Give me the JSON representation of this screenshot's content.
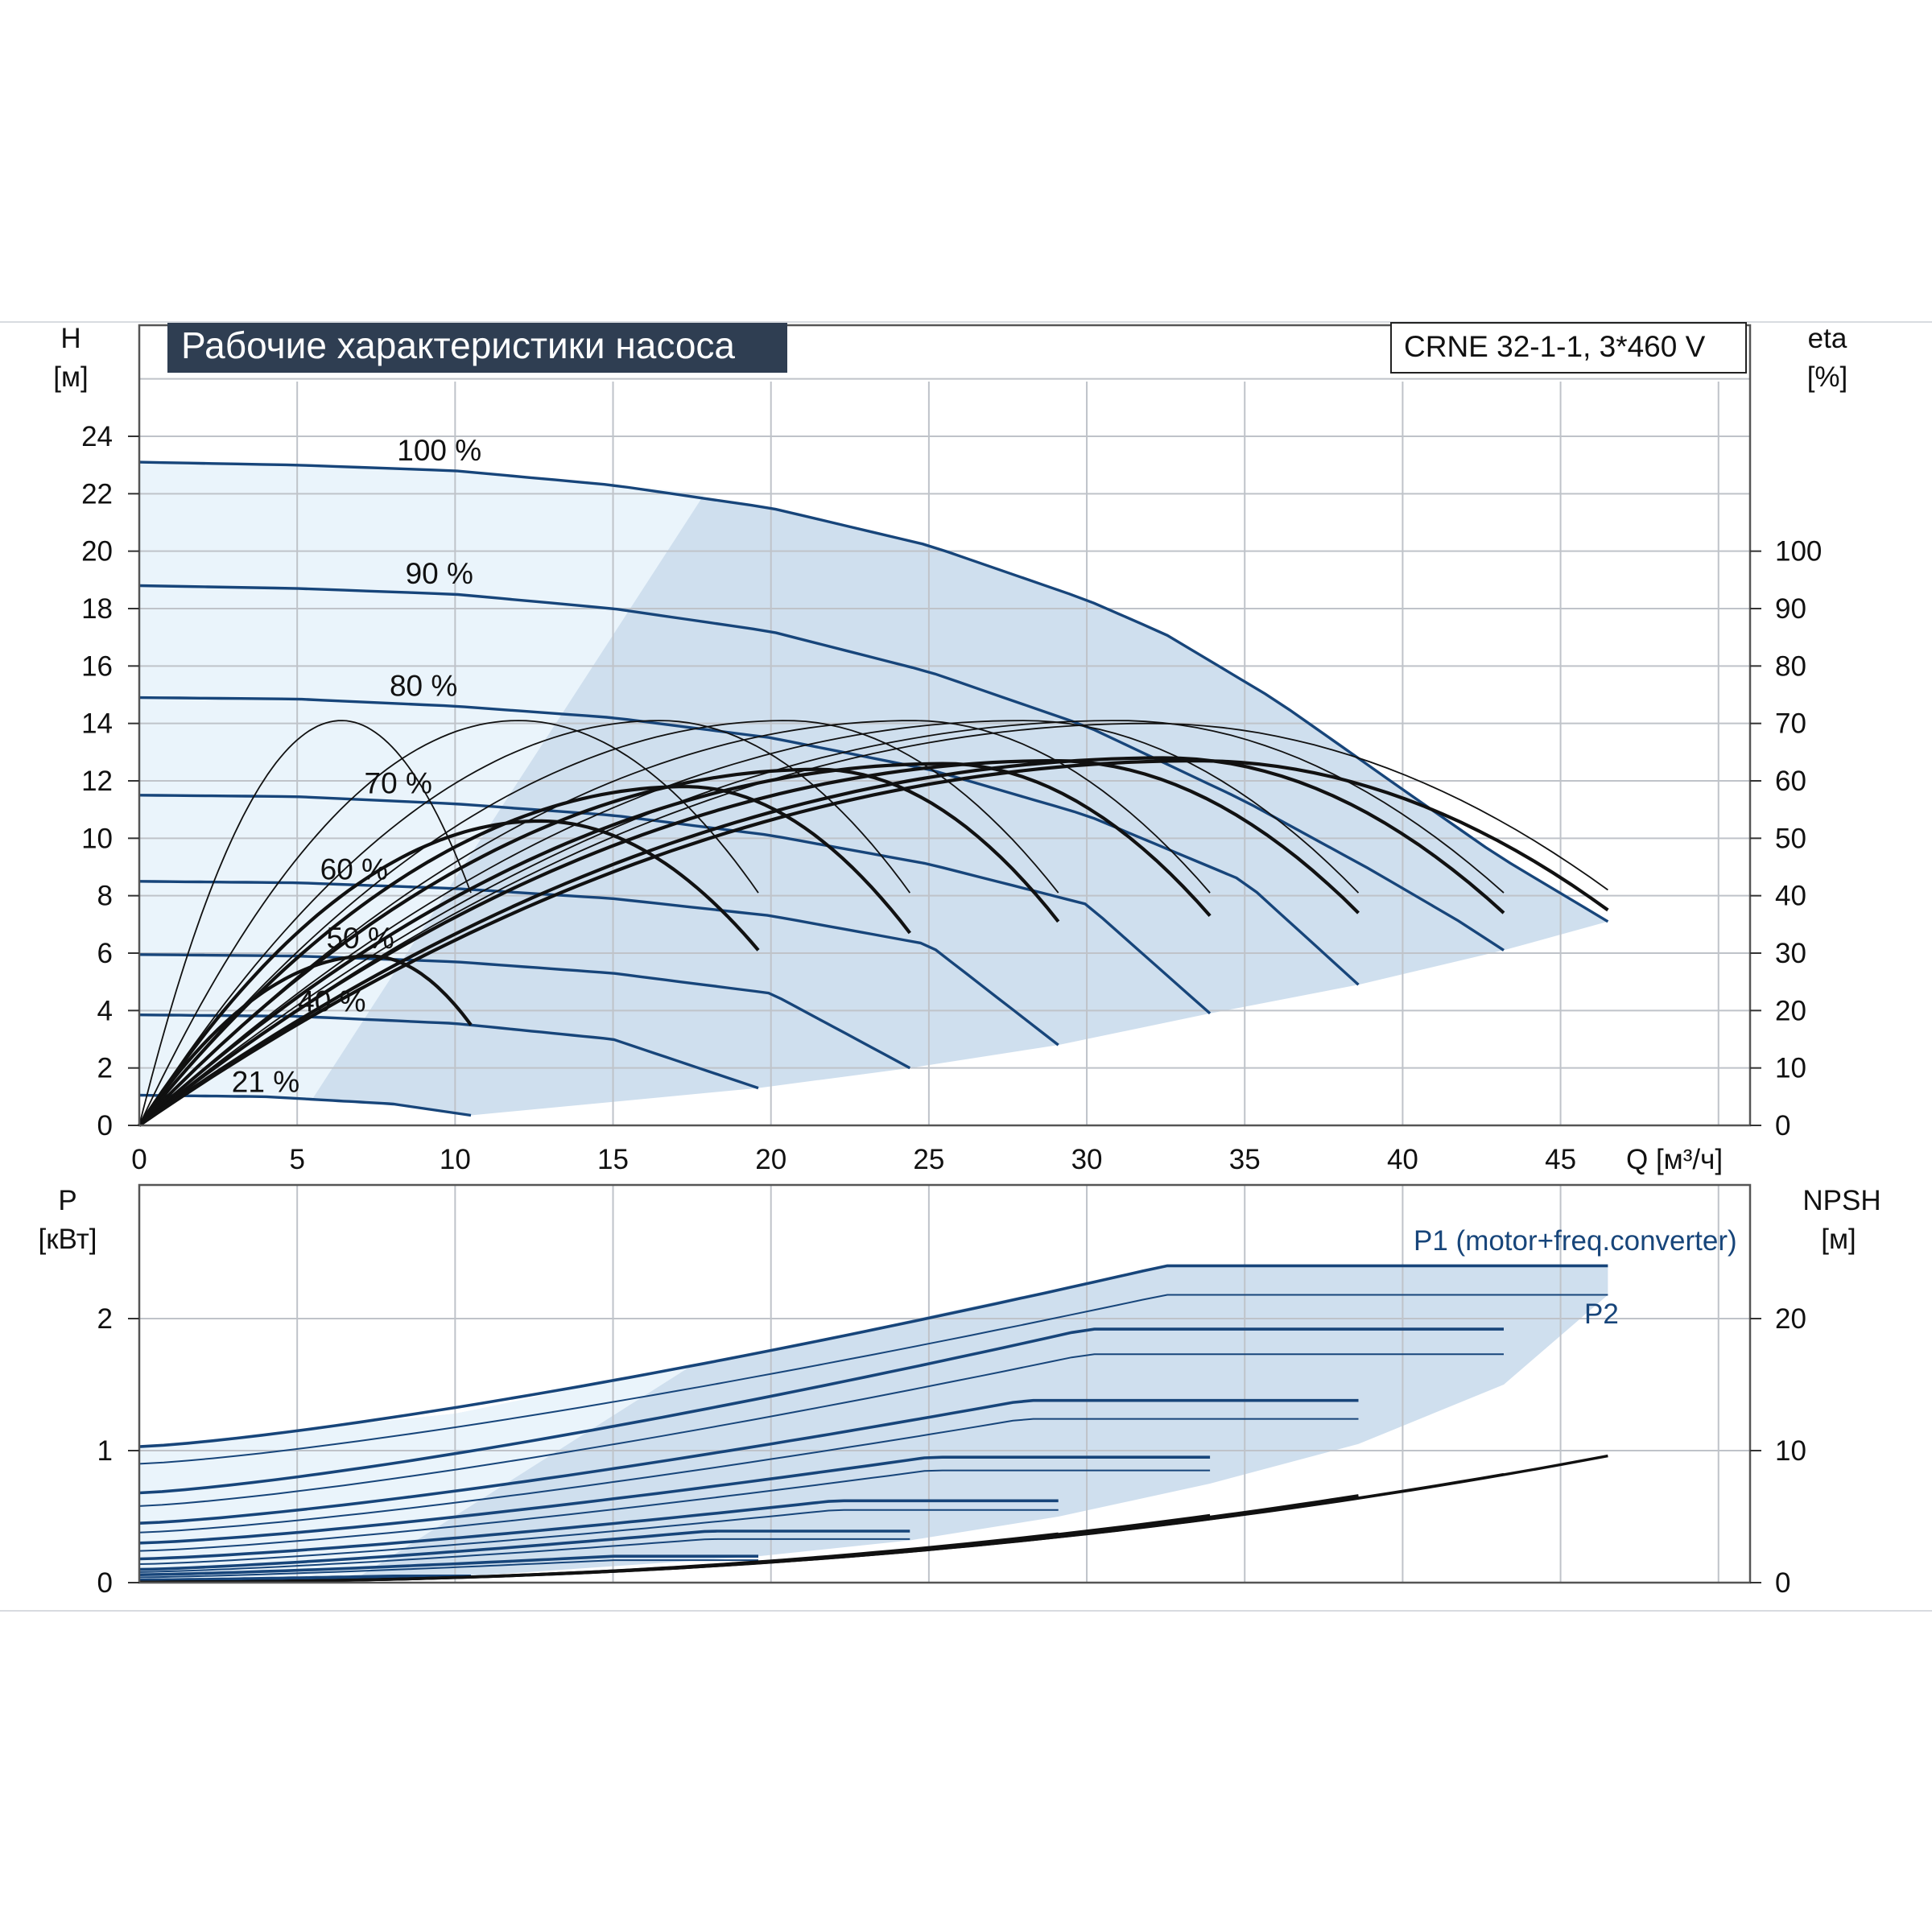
{
  "title": "Рабочие характеристики насоса",
  "model": "CRNE 32-1-1, 3*460 V",
  "colors": {
    "blue": "#17457a",
    "black": "#111111",
    "grid": "#bfc3c9",
    "title_bg": "#2f3e52",
    "band": "#cfdfee",
    "band_light": "#eaf4fb"
  },
  "chart_data": [
    {
      "type": "line",
      "left_axis": {
        "label": "H",
        "unit": "[м]",
        "ticks": [
          "0",
          "2",
          "4",
          "6",
          "8",
          "10",
          "12",
          "14",
          "16",
          "18",
          "20",
          "22",
          "24"
        ],
        "ylim": [
          0,
          24
        ]
      },
      "right_axis": {
        "label": "eta",
        "unit": "[%]",
        "ticks": [
          "0",
          "10",
          "20",
          "30",
          "40",
          "50",
          "60",
          "70",
          "80",
          "90",
          "100"
        ],
        "ylim": [
          0,
          120
        ]
      },
      "x_axis": {
        "label": "Q [м³/ч]",
        "ticks": [
          "0",
          "5",
          "10",
          "15",
          "20",
          "25",
          "30",
          "35",
          "40",
          "45"
        ],
        "xlim": [
          0,
          51
        ]
      },
      "grid": true,
      "qh_series": [
        {
          "name": "100 %",
          "points": [
            [
              0,
              23.1
            ],
            [
              5,
              23.0
            ],
            [
              10,
              22.8
            ],
            [
              15,
              22.3
            ],
            [
              20,
              21.5
            ],
            [
              25,
              20.2
            ],
            [
              30,
              18.3
            ],
            [
              32.5,
              17.1
            ],
            [
              36,
              14.8
            ],
            [
              40,
              11.7
            ],
            [
              43,
              9.4
            ],
            [
              46.5,
              7.1
            ]
          ]
        },
        {
          "name": "90 %",
          "points": [
            [
              0,
              18.8
            ],
            [
              5,
              18.7
            ],
            [
              10,
              18.5
            ],
            [
              15,
              18.0
            ],
            [
              20,
              17.2
            ],
            [
              25,
              15.8
            ],
            [
              30,
              13.9
            ],
            [
              35,
              11.3
            ],
            [
              39,
              8.9
            ],
            [
              41.8,
              7.1
            ],
            [
              43.2,
              6.1
            ]
          ]
        },
        {
          "name": "80 %",
          "points": [
            [
              0,
              14.9
            ],
            [
              5,
              14.85
            ],
            [
              10,
              14.6
            ],
            [
              15,
              14.2
            ],
            [
              20,
              13.5
            ],
            [
              25,
              12.4
            ],
            [
              30,
              10.8
            ],
            [
              35,
              8.5
            ],
            [
              38.6,
              4.9
            ]
          ]
        },
        {
          "name": "70 %",
          "points": [
            [
              0,
              11.5
            ],
            [
              5,
              11.45
            ],
            [
              10,
              11.2
            ],
            [
              15,
              10.8
            ],
            [
              20,
              10.1
            ],
            [
              25,
              9.1
            ],
            [
              30,
              7.7
            ],
            [
              33.9,
              3.9
            ]
          ]
        },
        {
          "name": "60 %",
          "points": [
            [
              0,
              8.5
            ],
            [
              5,
              8.45
            ],
            [
              10,
              8.25
            ],
            [
              15,
              7.9
            ],
            [
              20,
              7.3
            ],
            [
              25,
              6.3
            ],
            [
              29.1,
              2.8
            ]
          ]
        },
        {
          "name": "50 %",
          "points": [
            [
              0,
              5.95
            ],
            [
              5,
              5.9
            ],
            [
              10,
              5.7
            ],
            [
              15,
              5.3
            ],
            [
              20,
              4.6
            ],
            [
              24.4,
              2.0
            ]
          ]
        },
        {
          "name": "40 %",
          "points": [
            [
              0,
              3.85
            ],
            [
              5,
              3.8
            ],
            [
              10,
              3.55
            ],
            [
              15,
              3.0
            ],
            [
              19.6,
              1.3
            ]
          ]
        },
        {
          "name": "21 %",
          "points": [
            [
              0,
              1.05
            ],
            [
              4,
              1.0
            ],
            [
              8,
              0.75
            ],
            [
              10.5,
              0.35
            ]
          ]
        }
      ],
      "eta_series": [
        {
          "peak_q": 6.4,
          "peak_eta": 70.5,
          "end_q": 10.5,
          "end_eta": 40.5
        },
        {
          "peak_q": 7.3,
          "peak_eta": 29.5,
          "end_q": 10.5,
          "end_eta": 17.5
        },
        {
          "peak_q": 12.0,
          "peak_eta": 70.5,
          "end_q": 19.6,
          "end_eta": 40.5
        },
        {
          "peak_q": 12.7,
          "peak_eta": 53.0,
          "end_q": 19.6,
          "end_eta": 30.5
        },
        {
          "peak_q": 16.5,
          "peak_eta": 70.5,
          "end_q": 24.4,
          "end_eta": 40.5
        },
        {
          "peak_q": 17.3,
          "peak_eta": 59.0,
          "end_q": 24.4,
          "end_eta": 33.5
        },
        {
          "peak_q": 20.5,
          "peak_eta": 70.5,
          "end_q": 29.1,
          "end_eta": 40.5
        },
        {
          "peak_q": 21.5,
          "peak_eta": 62.0,
          "end_q": 29.1,
          "end_eta": 35.5
        },
        {
          "peak_q": 24.5,
          "peak_eta": 70.5,
          "end_q": 33.9,
          "end_eta": 40.5
        },
        {
          "peak_q": 25.5,
          "peak_eta": 63.0,
          "end_q": 33.9,
          "end_eta": 36.5
        },
        {
          "peak_q": 28.0,
          "peak_eta": 70.5,
          "end_q": 38.6,
          "end_eta": 40.5
        },
        {
          "peak_q": 29.0,
          "peak_eta": 63.5,
          "end_q": 38.6,
          "end_eta": 37.0
        },
        {
          "peak_q": 31.0,
          "peak_eta": 70.5,
          "end_q": 43.2,
          "end_eta": 40.5
        },
        {
          "peak_q": 32.5,
          "peak_eta": 64.0,
          "end_q": 43.2,
          "end_eta": 37.0
        },
        {
          "peak_q": 32.0,
          "peak_eta": 70.0,
          "end_q": 46.5,
          "end_eta": 41.0
        },
        {
          "peak_q": 33.5,
          "peak_eta": 63.5,
          "end_q": 46.5,
          "end_eta": 37.5
        }
      ],
      "pct_labels": [
        {
          "text": "100 %",
          "q": 9.5,
          "h": 23.5
        },
        {
          "text": "90 %",
          "q": 9.5,
          "h": 19.2
        },
        {
          "text": "80 %",
          "q": 9.0,
          "h": 15.3
        },
        {
          "text": "70 %",
          "q": 8.2,
          "h": 11.9
        },
        {
          "text": "60 %",
          "q": 6.8,
          "h": 8.9
        },
        {
          "text": "50 %",
          "q": 7.0,
          "h": 6.5
        },
        {
          "text": "40 %",
          "q": 6.1,
          "h": 4.3
        },
        {
          "text": "21 %",
          "q": 4.0,
          "h": 1.5
        }
      ]
    },
    {
      "type": "line",
      "left_axis": {
        "label": "P",
        "unit": "[кВт]",
        "ticks": [
          "0",
          "1",
          "2"
        ],
        "ylim": [
          0,
          3
        ]
      },
      "right_axis": {
        "label": "NPSH",
        "unit": "[м]",
        "ticks": [
          "0",
          "10",
          "20"
        ],
        "ylim": [
          0,
          30
        ]
      },
      "x_axis": {
        "xlim": [
          0,
          51
        ]
      },
      "grid": true,
      "legend": [
        {
          "name": "P1 (motor+freq.converter)"
        },
        {
          "name": "P2"
        }
      ],
      "p1_series": [
        {
          "start": 1.03,
          "end": 2.4,
          "end_q": 46.5,
          "knee_q": 32.5
        },
        {
          "start": 0.68,
          "end": 1.92,
          "end_q": 43.2,
          "knee_q": 30.0
        },
        {
          "start": 0.45,
          "end": 1.38,
          "end_q": 38.6,
          "knee_q": 28.0
        },
        {
          "start": 0.3,
          "end": 0.95,
          "end_q": 33.9,
          "knee_q": 25.0
        },
        {
          "start": 0.18,
          "end": 0.62,
          "end_q": 29.1,
          "knee_q": 22.0
        },
        {
          "start": 0.1,
          "end": 0.39,
          "end_q": 24.4,
          "knee_q": 18.0
        },
        {
          "start": 0.06,
          "end": 0.2,
          "end_q": 19.6,
          "knee_q": 15.0
        },
        {
          "start": 0.02,
          "end": 0.05,
          "end_q": 10.5,
          "knee_q": 8.0
        }
      ],
      "p2_series": [
        {
          "start": 0.9,
          "end": 2.18,
          "end_q": 46.5,
          "knee_q": 32.5
        },
        {
          "start": 0.58,
          "end": 1.73,
          "end_q": 43.2,
          "knee_q": 30.0
        },
        {
          "start": 0.38,
          "end": 1.24,
          "end_q": 38.6,
          "knee_q": 28.0
        },
        {
          "start": 0.24,
          "end": 0.85,
          "end_q": 33.9,
          "knee_q": 25.0
        },
        {
          "start": 0.14,
          "end": 0.55,
          "end_q": 29.1,
          "knee_q": 22.0
        },
        {
          "start": 0.08,
          "end": 0.33,
          "end_q": 24.4,
          "knee_q": 18.0
        },
        {
          "start": 0.04,
          "end": 0.17,
          "end_q": 19.6,
          "knee_q": 15.0
        },
        {
          "start": 0.01,
          "end": 0.04,
          "end_q": 10.5,
          "knee_q": 8.0
        }
      ],
      "npsh_series": [
        {
          "end_q": 29.1,
          "end_npsh": 3.7
        },
        {
          "end_q": 33.9,
          "end_npsh": 5.1
        },
        {
          "end_q": 38.6,
          "end_npsh": 6.6
        },
        {
          "end_q": 43.2,
          "end_npsh": 8.2
        },
        {
          "end_q": 46.5,
          "end_npsh": 9.6
        }
      ]
    }
  ]
}
